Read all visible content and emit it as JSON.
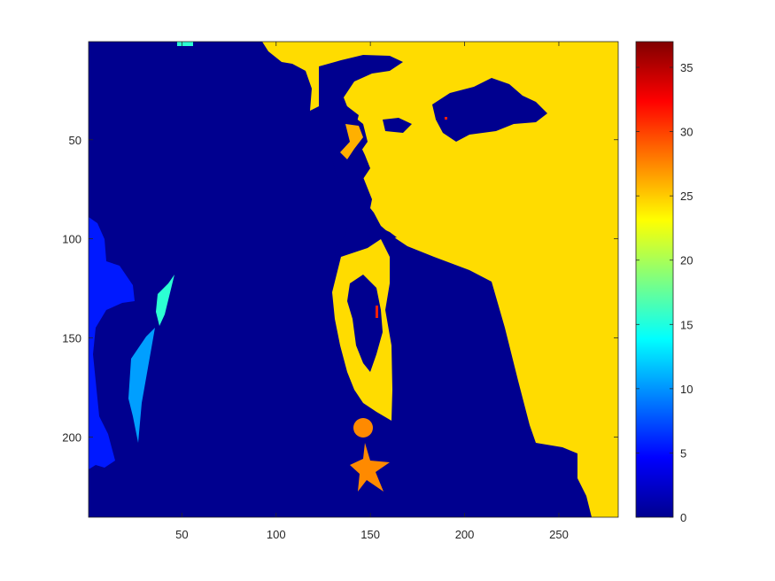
{
  "chart_data": {
    "type": "heatmap",
    "title": "",
    "xlabel": "",
    "ylabel": "",
    "colormap": "jet",
    "y_axis_direction": "reversed",
    "xlim": [
      0.5,
      281.5
    ],
    "ylim": [
      0.5,
      240.5
    ],
    "x_ticks": [
      50,
      100,
      150,
      200,
      250
    ],
    "y_ticks": [
      50,
      100,
      150,
      200
    ],
    "colorbar": {
      "clim": [
        0,
        37
      ],
      "ticks": [
        0,
        5,
        10,
        15,
        20,
        25,
        30,
        35
      ]
    },
    "colors": {
      "background_label": "#00008f",
      "foreground_label": "#ffdc00",
      "left_blue_region": "#0019ff",
      "left_cyan_strip": "#009fff",
      "small_green_strip": "#2cffd3",
      "orange_object": "#ff8a00",
      "small_orange_patch": "#ffb000"
    },
    "regions": [
      {
        "label": "background",
        "value": 0
      },
      {
        "label": "bright-foreground",
        "value": 24
      },
      {
        "label": "left-edge-region",
        "value": 4
      },
      {
        "label": "left-strip-lower",
        "value": 10
      },
      {
        "label": "left-strip-upper",
        "value": 16
      },
      {
        "label": "ornament-star",
        "value": 27
      },
      {
        "label": "small-patches",
        "value": 26
      },
      {
        "label": "red-specks",
        "value": 33
      }
    ]
  }
}
